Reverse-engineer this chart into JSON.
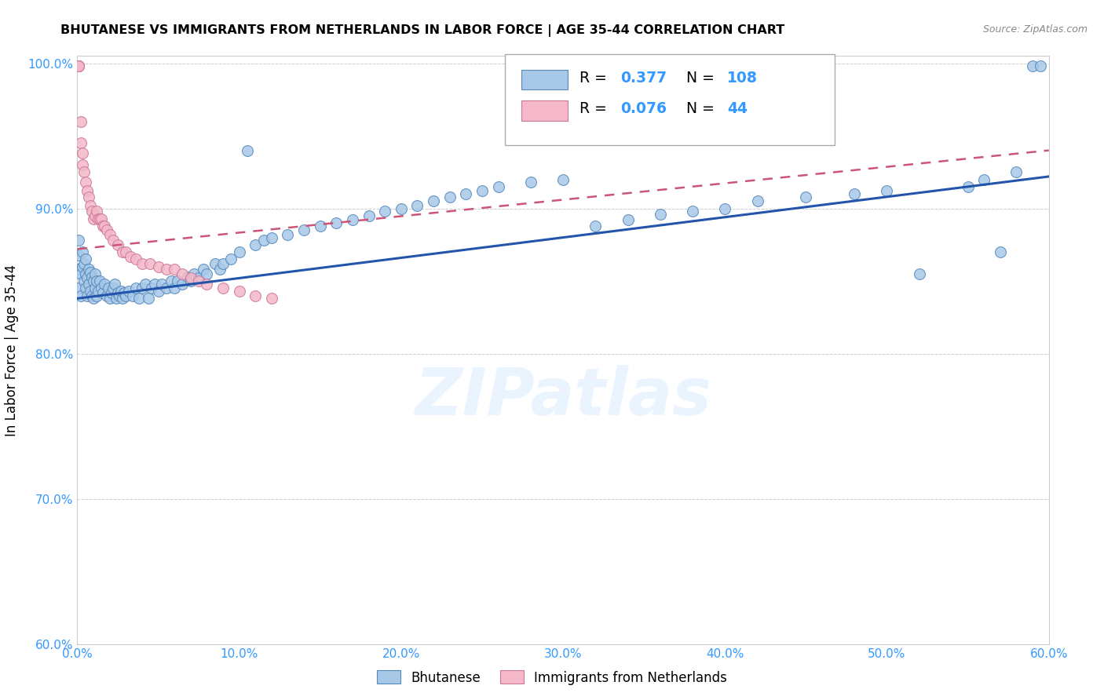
{
  "title": "BHUTANESE VS IMMIGRANTS FROM NETHERLANDS IN LABOR FORCE | AGE 35-44 CORRELATION CHART",
  "source": "Source: ZipAtlas.com",
  "ylabel": "In Labor Force | Age 35-44",
  "x_min": 0.0,
  "x_max": 0.6,
  "y_min": 0.6,
  "y_max": 1.005,
  "x_ticks": [
    0.0,
    0.1,
    0.2,
    0.3,
    0.4,
    0.5,
    0.6
  ],
  "x_tick_labels": [
    "0.0%",
    "10.0%",
    "20.0%",
    "30.0%",
    "40.0%",
    "50.0%",
    "60.0%"
  ],
  "y_ticks": [
    0.6,
    0.7,
    0.8,
    0.9,
    1.0
  ],
  "y_tick_labels": [
    "60.0%",
    "70.0%",
    "80.0%",
    "90.0%",
    "100.0%"
  ],
  "bhutanese_R": 0.377,
  "bhutanese_N": 108,
  "netherlands_R": 0.076,
  "netherlands_N": 44,
  "blue_color": "#a8c8e8",
  "blue_edge_color": "#5588bb",
  "blue_line_color": "#2255aa",
  "pink_color": "#f4b8c8",
  "pink_edge_color": "#cc7799",
  "pink_line_color": "#cc5577",
  "watermark_text": "ZIPatlas",
  "bhutanese_x": [
    0.001,
    0.001,
    0.001,
    0.001,
    0.002,
    0.002,
    0.003,
    0.003,
    0.004,
    0.004,
    0.005,
    0.005,
    0.005,
    0.006,
    0.006,
    0.007,
    0.007,
    0.008,
    0.008,
    0.009,
    0.009,
    0.01,
    0.01,
    0.011,
    0.011,
    0.012,
    0.012,
    0.013,
    0.014,
    0.015,
    0.016,
    0.017,
    0.018,
    0.019,
    0.02,
    0.021,
    0.022,
    0.023,
    0.024,
    0.025,
    0.026,
    0.027,
    0.028,
    0.029,
    0.03,
    0.032,
    0.034,
    0.036,
    0.038,
    0.04,
    0.042,
    0.044,
    0.046,
    0.048,
    0.05,
    0.052,
    0.055,
    0.058,
    0.06,
    0.062,
    0.065,
    0.068,
    0.07,
    0.072,
    0.075,
    0.078,
    0.08,
    0.085,
    0.088,
    0.09,
    0.095,
    0.1,
    0.105,
    0.11,
    0.115,
    0.12,
    0.13,
    0.14,
    0.15,
    0.16,
    0.17,
    0.18,
    0.19,
    0.2,
    0.21,
    0.22,
    0.23,
    0.24,
    0.25,
    0.26,
    0.28,
    0.3,
    0.32,
    0.34,
    0.36,
    0.38,
    0.4,
    0.42,
    0.45,
    0.48,
    0.5,
    0.52,
    0.55,
    0.56,
    0.57,
    0.58,
    0.59,
    0.595
  ],
  "bhutanese_y": [
    0.845,
    0.858,
    0.868,
    0.878,
    0.84,
    0.855,
    0.86,
    0.87,
    0.85,
    0.862,
    0.845,
    0.855,
    0.865,
    0.84,
    0.852,
    0.848,
    0.858,
    0.843,
    0.856,
    0.84,
    0.853,
    0.838,
    0.85,
    0.845,
    0.855,
    0.84,
    0.85,
    0.843,
    0.85,
    0.845,
    0.842,
    0.848,
    0.84,
    0.845,
    0.838,
    0.842,
    0.845,
    0.848,
    0.838,
    0.842,
    0.84,
    0.843,
    0.838,
    0.842,
    0.84,
    0.843,
    0.84,
    0.845,
    0.838,
    0.845,
    0.848,
    0.838,
    0.845,
    0.848,
    0.843,
    0.848,
    0.845,
    0.85,
    0.845,
    0.85,
    0.848,
    0.853,
    0.85,
    0.855,
    0.852,
    0.858,
    0.855,
    0.862,
    0.858,
    0.862,
    0.865,
    0.87,
    0.94,
    0.875,
    0.878,
    0.88,
    0.882,
    0.885,
    0.888,
    0.89,
    0.892,
    0.895,
    0.898,
    0.9,
    0.902,
    0.905,
    0.908,
    0.91,
    0.912,
    0.915,
    0.918,
    0.92,
    0.888,
    0.892,
    0.896,
    0.898,
    0.9,
    0.905,
    0.908,
    0.91,
    0.912,
    0.855,
    0.915,
    0.92,
    0.87,
    0.925,
    0.998,
    0.998
  ],
  "netherlands_x": [
    0.001,
    0.001,
    0.001,
    0.001,
    0.001,
    0.002,
    0.002,
    0.003,
    0.003,
    0.004,
    0.005,
    0.006,
    0.007,
    0.008,
    0.009,
    0.01,
    0.011,
    0.012,
    0.013,
    0.014,
    0.015,
    0.016,
    0.017,
    0.018,
    0.02,
    0.022,
    0.025,
    0.028,
    0.03,
    0.033,
    0.036,
    0.04,
    0.045,
    0.05,
    0.055,
    0.06,
    0.065,
    0.07,
    0.075,
    0.08,
    0.09,
    0.1,
    0.11,
    0.12
  ],
  "netherlands_y": [
    0.998,
    0.998,
    0.998,
    0.998,
    0.998,
    0.96,
    0.945,
    0.938,
    0.93,
    0.925,
    0.918,
    0.912,
    0.908,
    0.902,
    0.898,
    0.893,
    0.895,
    0.898,
    0.893,
    0.893,
    0.893,
    0.888,
    0.888,
    0.885,
    0.882,
    0.878,
    0.875,
    0.87,
    0.87,
    0.867,
    0.865,
    0.862,
    0.862,
    0.86,
    0.858,
    0.858,
    0.855,
    0.852,
    0.85,
    0.848,
    0.845,
    0.843,
    0.84,
    0.838
  ],
  "blue_trend_x0": 0.0,
  "blue_trend_y0": 0.838,
  "blue_trend_x1": 0.6,
  "blue_trend_y1": 0.922,
  "pink_trend_x0": 0.0,
  "pink_trend_y0": 0.872,
  "pink_trend_x1": 0.6,
  "pink_trend_y1": 0.94
}
